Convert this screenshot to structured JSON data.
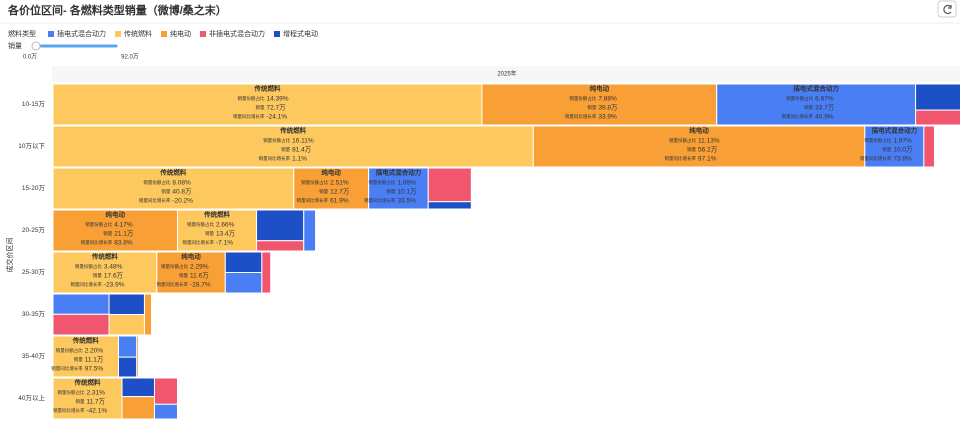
{
  "chart_data": {
    "type": "treemap",
    "title": "各价位区间- 各燃料类型销量（微博/桑之末）",
    "legend_title": "燃料类型",
    "series": [
      {
        "name": "插电式混合动力",
        "color": "#4a7ef5"
      },
      {
        "name": "传统燃料",
        "color": "#fdc85e"
      },
      {
        "name": "纯电动",
        "color": "#f8a035"
      },
      {
        "name": "非插电式混合动力",
        "color": "#f0566e"
      },
      {
        "name": "增程式电动",
        "color": "#1d4fc7"
      }
    ],
    "slider": {
      "label": "销量",
      "min_label": "0.0万",
      "max_label": "92.0万"
    },
    "column_label": "2025年",
    "y_label": "成交价区间",
    "field_labels": [
      "销量份额占比",
      "销量",
      "销量同比增长率"
    ],
    "rows": [
      {
        "category": "10-15万",
        "cells": [
          {
            "series": 1,
            "sales": 72.7,
            "sales_label": "72.7万",
            "share": "14.39%",
            "growth": "-24.1%"
          },
          {
            "series": 2,
            "sales": 39.8,
            "sales_label": "39.8万",
            "share": "7.88%",
            "growth": "33.9%"
          },
          {
            "series": 0,
            "sales": 33.7,
            "sales_label": "33.7万",
            "share": "6.67%",
            "growth": "40.9%"
          },
          {
            "series": 4,
            "sales": 7
          },
          {
            "series": 3,
            "sales": 4
          }
        ]
      },
      {
        "category": "10万以下",
        "cells": [
          {
            "series": 1,
            "sales": 81.4,
            "sales_label": "81.4万",
            "share": "16.11%",
            "growth": "1.1%"
          },
          {
            "series": 2,
            "sales": 56.2,
            "sales_label": "56.2万",
            "share": "11.13%",
            "growth": "97.1%"
          },
          {
            "series": 0,
            "sales": 10.0,
            "sales_label": "10.0万",
            "share": "1.97%",
            "growth": "73.8%"
          },
          {
            "series": 3,
            "sales": 1.8
          }
        ]
      },
      {
        "category": "15-20万",
        "cells": [
          {
            "series": 1,
            "sales": 40.8,
            "sales_label": "40.8万",
            "share": "8.08%",
            "growth": "-20.2%"
          },
          {
            "series": 2,
            "sales": 12.7,
            "sales_label": "12.7万",
            "share": "2.51%",
            "growth": "61.9%"
          },
          {
            "series": 0,
            "sales": 10.1,
            "sales_label": "10.1万",
            "share": "1.99%",
            "growth": "33.5%"
          },
          {
            "series": 3,
            "sales": 6
          },
          {
            "series": 4,
            "sales": 1.3
          }
        ]
      },
      {
        "category": "20-25万",
        "cells": [
          {
            "series": 2,
            "sales": 21.1,
            "sales_label": "21.1万",
            "share": "4.17%",
            "growth": "83.8%"
          },
          {
            "series": 1,
            "sales": 13.4,
            "sales_label": "13.4万",
            "share": "2.66%",
            "growth": "-7.1%"
          },
          {
            "series": 4,
            "sales": 6
          },
          {
            "series": 3,
            "sales": 2
          },
          {
            "series": 0,
            "sales": 2
          }
        ]
      },
      {
        "category": "25-30万",
        "cells": [
          {
            "series": 1,
            "sales": 17.6,
            "sales_label": "17.6万",
            "share": "3.48%",
            "growth": "-23.9%"
          },
          {
            "series": 2,
            "sales": 11.6,
            "sales_label": "11.6万",
            "share": "2.29%",
            "growth": "-28.7%"
          },
          {
            "series": 4,
            "sales": 3.1
          },
          {
            "series": 0,
            "sales": 3.1
          },
          {
            "series": 3,
            "sales": 1.5
          }
        ]
      },
      {
        "category": "30-35万",
        "cells": [
          {
            "series": 0,
            "sales": 4.7
          },
          {
            "series": 3,
            "sales": 4.8
          },
          {
            "series": 4,
            "sales": 3
          },
          {
            "series": 1,
            "sales": 3
          },
          {
            "series": 2,
            "sales": 1.2
          }
        ]
      },
      {
        "category": "35-40万",
        "cells": [
          {
            "series": 1,
            "sales": 11.1,
            "sales_label": "11.1万",
            "share": "2.20%",
            "growth": "97.5%"
          },
          {
            "series": 0,
            "sales": 1.6
          },
          {
            "series": 4,
            "sales": 1.5
          },
          {
            "series": 2,
            "sales": 0.3
          }
        ]
      },
      {
        "category": "40万以上",
        "cells": [
          {
            "series": 1,
            "sales": 11.7,
            "sales_label": "11.7万",
            "share": "2.31%",
            "growth": "-42.1%"
          },
          {
            "series": 4,
            "sales": 2.5
          },
          {
            "series": 2,
            "sales": 3
          },
          {
            "series": 3,
            "sales": 2.5
          },
          {
            "series": 0,
            "sales": 1.4
          }
        ]
      }
    ]
  }
}
